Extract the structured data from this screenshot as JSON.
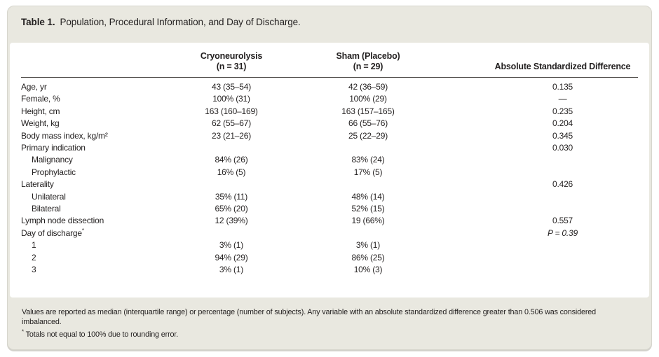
{
  "colors": {
    "card_bg": "#e9e8e0",
    "panel_bg": "#ffffff",
    "text": "#221f1f",
    "header_rule": "#45423f"
  },
  "table": {
    "title_label": "Table 1.",
    "title_text": "Population, Procedural Information, and Day of Discharge.",
    "columns": {
      "group_line1": "Cryoneurolysis",
      "group_line2": "(n = 31)",
      "control_line1": "Sham (Placebo)",
      "control_line2": "(n = 29)",
      "asd": "Absolute Standardized Difference"
    },
    "rows": [
      {
        "label": "Age, yr",
        "label_sup": "",
        "indent": 0,
        "cryo": "43 (35–54)",
        "sham": "42 (36–59)",
        "asd": "—",
        "asd_hidden": false,
        "asd_italic": false
      },
      {
        "label": "Female, %",
        "label_sup": "",
        "indent": 0,
        "cryo": "100% (31)",
        "sham": "100% (29)",
        "asd": "—",
        "asd_hidden": false,
        "asd_italic": false
      },
      {
        "label": "Height, cm",
        "label_sup": "",
        "indent": 0,
        "cryo": "163 (160–169)",
        "sham": "163 (157–165)",
        "asd": "0.235",
        "asd_hidden": false,
        "asd_italic": false
      },
      {
        "label": "Weight, kg",
        "label_sup": "",
        "indent": 0,
        "cryo": "62 (55–67)",
        "sham": "66 (55–76)",
        "asd": "0.204",
        "asd_hidden": false,
        "asd_italic": false
      },
      {
        "label": "Body mass index, kg/m²",
        "label_sup": "",
        "indent": 0,
        "cryo": "23 (21–26)",
        "sham": "25 (22–29)",
        "asd": "0.345",
        "asd_hidden": false,
        "asd_italic": false
      },
      {
        "label": "Primary indication",
        "label_sup": "",
        "indent": 0,
        "cryo": "",
        "sham": "",
        "asd": "0.030",
        "asd_hidden": false,
        "asd_italic": false
      },
      {
        "label": "Malignancy",
        "label_sup": "",
        "indent": 1,
        "cryo": "84% (26)",
        "sham": "83% (24)",
        "asd": "",
        "asd_hidden": true,
        "asd_italic": false
      },
      {
        "label": "Prophylactic",
        "label_sup": "",
        "indent": 1,
        "cryo": "16% (5)",
        "sham": "17% (5)",
        "asd": "",
        "asd_hidden": true,
        "asd_italic": false
      },
      {
        "label": "Laterality",
        "label_sup": "",
        "indent": 0,
        "cryo": "",
        "sham": "",
        "asd": "0.426",
        "asd_hidden": false,
        "asd_italic": false
      },
      {
        "label": "Unilateral",
        "label_sup": "",
        "indent": 1,
        "cryo": "35% (11)",
        "sham": "48% (14)",
        "asd": "",
        "asd_hidden": true,
        "asd_italic": false
      },
      {
        "label": "Bilateral",
        "label_sup": "",
        "indent": 1,
        "cryo": "65% (20)",
        "sham": "52% (15)",
        "asd": "",
        "asd_hidden": true,
        "asd_italic": false
      },
      {
        "label": "Lymph node dissection",
        "label_sup": "",
        "indent": 0,
        "cryo": "12 (39%)",
        "sham": "19 (66%)",
        "asd": "0.557",
        "asd_hidden": false,
        "asd_italic": false
      },
      {
        "label": "Day of discharge",
        "label_sup": "*",
        "indent": 0,
        "cryo": "",
        "sham": "",
        "asd": "P = 0.39",
        "asd_hidden": false,
        "asd_italic": true
      },
      {
        "label": "1",
        "label_sup": "",
        "indent": 1,
        "cryo": "3% (1)",
        "sham": "3% (1)",
        "asd": "",
        "asd_hidden": true,
        "asd_italic": false
      },
      {
        "label": "2",
        "label_sup": "",
        "indent": 1,
        "cryo": "94% (29)",
        "sham": "86% (25)",
        "asd": "",
        "asd_hidden": true,
        "asd_italic": false
      },
      {
        "label": "3",
        "label_sup": "",
        "indent": 1,
        "cryo": "3% (1)",
        "sham": "10% (3)",
        "asd": "",
        "asd_hidden": true,
        "asd_italic": false
      }
    ],
    "row_asd_override": {
      "0": "0.135"
    },
    "footnotes": {
      "general": "Values are reported as median (interquartile range) or percentage (number of subjects). Any variable with an absolute standardized difference greater than 0.506 was considered imbalanced.",
      "asterisk_symbol": "*",
      "asterisk_text": "Totals not equal to 100% due to rounding error."
    }
  }
}
